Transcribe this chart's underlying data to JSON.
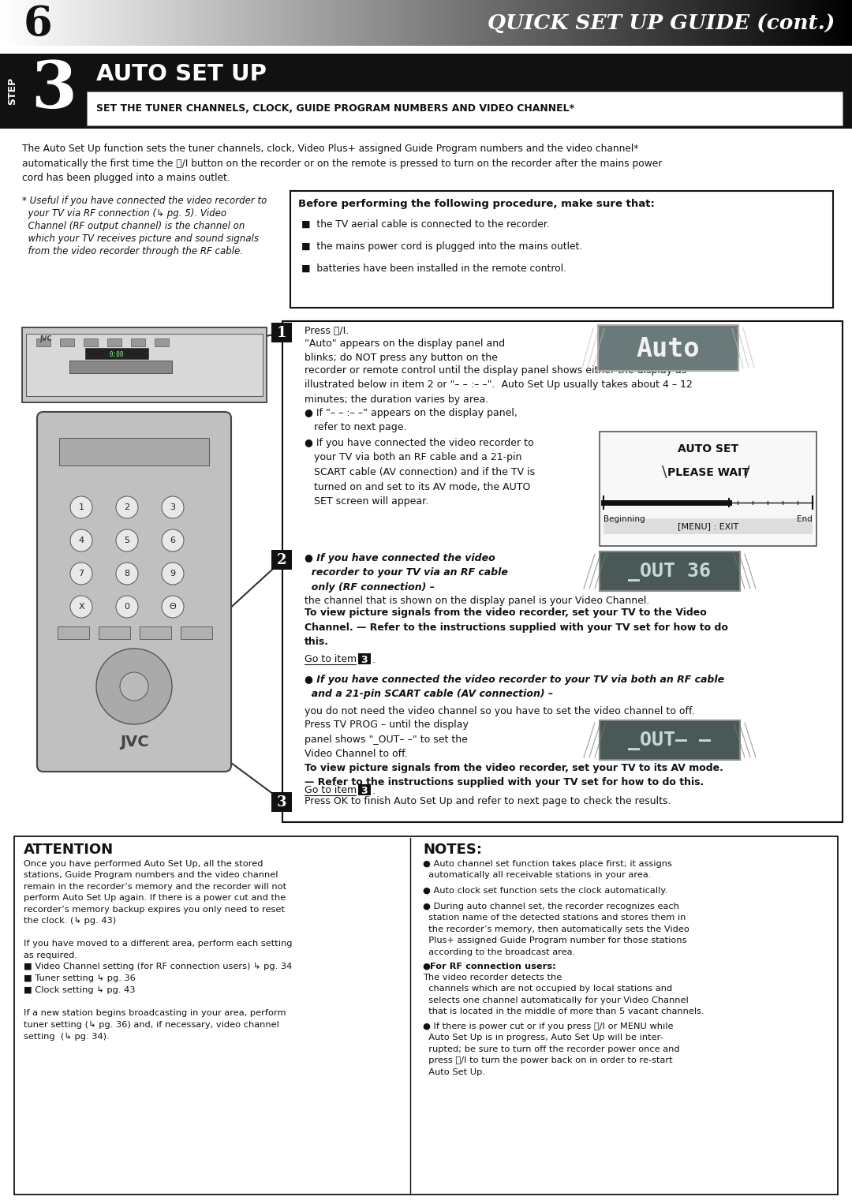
{
  "page_num": "6",
  "header_title": "QUICK SET UP GUIDE (cont.)",
  "step_num": "3",
  "auto_setup_title": "AUTO SET UP",
  "auto_setup_subtitle": "SET THE TUNER CHANNELS, CLOCK, GUIDE PROGRAM NUMBERS AND VIDEO CHANNEL*",
  "intro_text1": "The Auto Set Up function sets the tuner channels, clock, Video Plus+ assigned Guide Program numbers and the video channel*",
  "intro_text2": "automatically the first time the ⏻/I button on the recorder or on the remote is pressed to turn on the recorder after the mains power",
  "intro_text3": "cord has been plugged into a mains outlet.",
  "asterisk_note_lines": [
    "* Useful if you have connected the video recorder to",
    "  your TV via RF connection (↳ pg. 5). Video",
    "  Channel (RF output channel) is the channel on",
    "  which your TV receives picture and sound signals",
    "  from the video recorder through the RF cable."
  ],
  "before_box_title": "Before performing the following procedure, make sure that:",
  "before_box_items": [
    "the TV aerial cable is connected to the recorder.",
    "the mains power cord is plugged into the mains outlet.",
    "batteries have been installed in the remote control."
  ],
  "item1_line1": "Press ⏻/I.",
  "item1_line2": "\"Auto\" appears on the display panel and",
  "item1_line3": "blinks; do NOT press any button on the",
  "item1_line4": "recorder or remote control until the display panel shows either the display as",
  "item1_line5": "illustrated below in item 2 or \"– – :– –\".  Auto Set Up usually takes about 4 – 12",
  "item1_line6": "minutes; the duration varies by area.",
  "item1_b1": "● If \"– – :– –\" appears on the display panel,",
  "item1_b1b": "   refer to next page.",
  "item1_b2": "● If you have connected the video recorder to",
  "item1_b2b": "   your TV via both an RF cable and a 21-pin",
  "item1_b2c": "   SCART cable (AV connection) and if the TV is",
  "item1_b2d": "   turned on and set to its AV mode, the AUTO",
  "item1_b2e": "   SET screen will appear.",
  "autoset_label": "AUTO SET",
  "pleasewait_label": "PLEASE WAIT",
  "beginning_label": "Beginning",
  "end_label": "End",
  "menu_exit_label": "[MENU] : EXIT",
  "item2_b1_bold": "● If you have connected the video\n  recorder to your TV via an RF cable\n  only (RF connection) –",
  "item2_b1_normal": "the channel that is shown on the display panel is your Video Channel.",
  "item2_b1_bold2": "To view picture signals from the video recorder, set your TV to the Video",
  "item2_b1_bold3": "Channel. — Refer to the instructions supplied with your TV set for how to do",
  "item2_b1_bold4": "this.",
  "goto3_text": "Go to item",
  "item2_b2_bold": "● If you have connected the video recorder to your TV via both an RF cable",
  "item2_b2_bold2": "  and a 21-pin SCART cable (AV connection) –",
  "item2_b2_normal": "you do not need the video",
  "item2_b2_normal2": "channel so you have to set the video channel to off.",
  "item2_b2_normal3": "Press TV PROG – until the display",
  "item2_b2_normal4": "panel shows \"_OUT– –\" to set the",
  "item2_b2_normal5": "Video Channel to off.",
  "item2_b2_bold3": "To view picture signals from the video recorder, set your TV to its AV mode.",
  "item2_b2_bold4": "— Refer to the instructions supplied with your TV set for how to do this.",
  "item3_text": "Press OK to finish Auto Set Up and refer to next page to check the results.",
  "attention_title": "ATTENTION",
  "attention_body": [
    "Once you have performed Auto Set Up, all the stored",
    "stations, Guide Program numbers and the video channel",
    "remain in the recorder’s memory and the recorder will not",
    "perform Auto Set Up again. If there is a power cut and the",
    "recorder’s memory backup expires you only need to reset",
    "the clock. (↳ pg. 43)",
    "",
    "If you have moved to a different area, perform each setting",
    "as required.",
    "■ Video Channel setting (for RF connection users) ↳ pg. 34",
    "■ Tuner setting ↳ pg. 36",
    "■ Clock setting ↳ pg. 43",
    "",
    "If a new station begins broadcasting in your area, perform",
    "tuner setting (↳ pg. 36) and, if necessary, video channel",
    "setting  (↳ pg. 34)."
  ],
  "notes_title": "NOTES:",
  "notes_items": [
    "● Auto channel set function takes place first; it assigns\n  automatically all receivable stations in your area.",
    "● Auto clock set function sets the clock automatically.",
    "● During auto channel set, the recorder recognizes each\n  station name of the detected stations and stores them in\n  the recorder’s memory, then automatically sets the Video\n  Plus+ assigned Guide Program number for those stations\n  according to the broadcast area.",
    "● {bold}For RF connection users:{/bold} The video recorder detects the\n  channels which are not occupied by local stations and\n  selects one channel automatically for your Video Channel\n  that is located in the middle of more than 5 vacant channels.",
    "● If there is power cut or if you press ⏻/I or MENU while\n  Auto Set Up is in progress, Auto Set Up will be inter-\n  rupted; be sure to turn off the recorder power once and\n  press ⏻/I to turn the power back on in order to re-start\n  Auto Set Up."
  ],
  "bg_color": "#ffffff"
}
